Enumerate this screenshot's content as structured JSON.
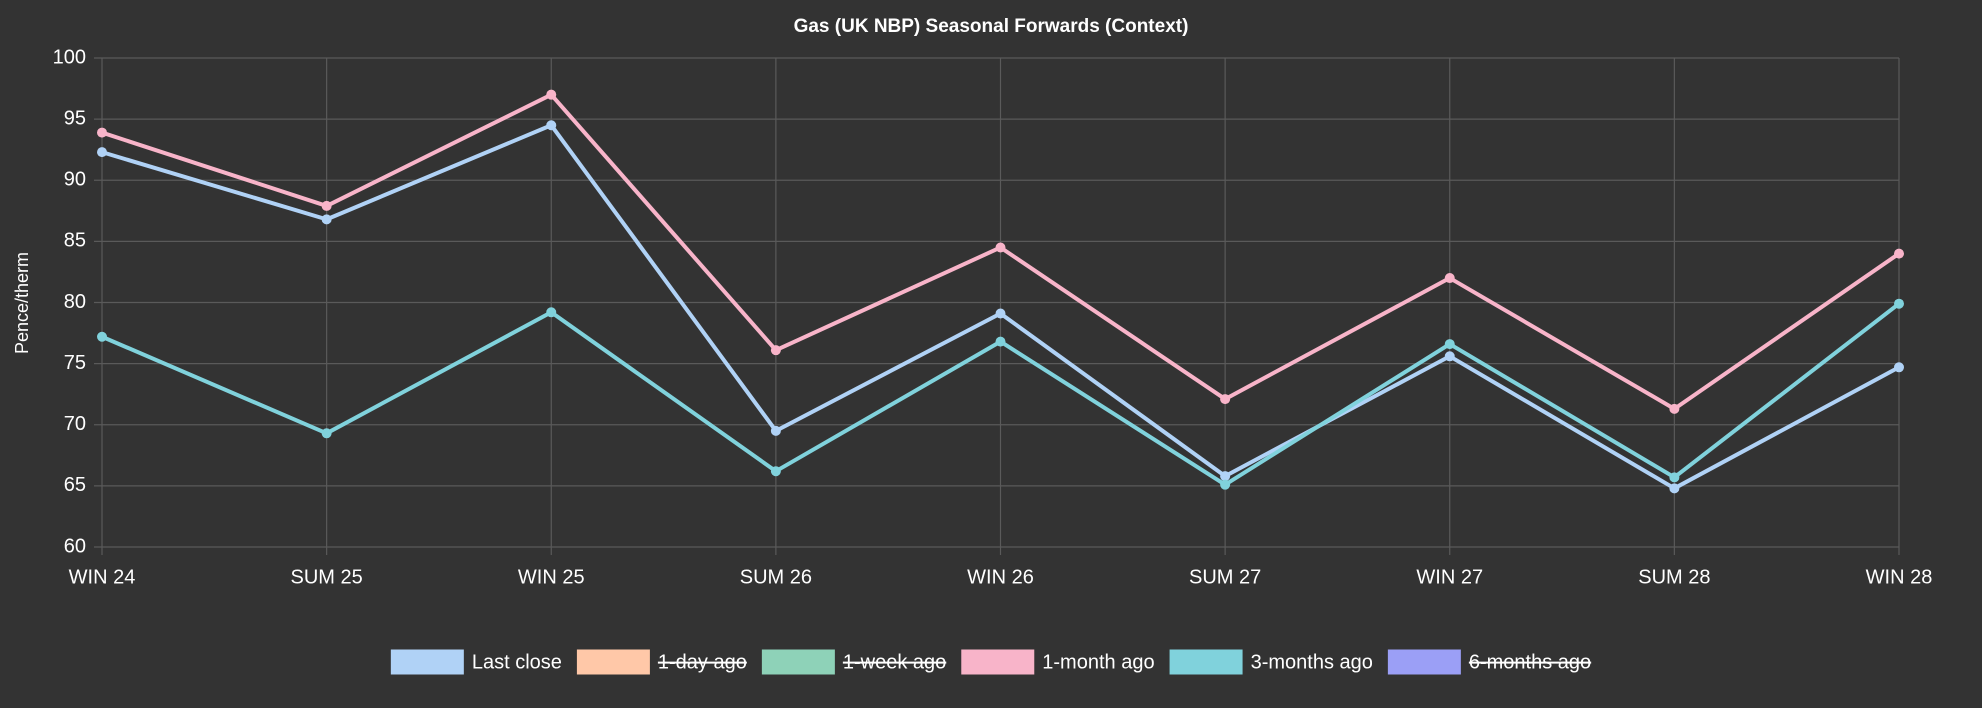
{
  "chart_data": {
    "type": "line",
    "title": "Gas (UK NBP) Seasonal Forwards (Context)",
    "y_label": "Pence/therm",
    "categories": [
      "WIN 24",
      "SUM 25",
      "WIN 25",
      "SUM 26",
      "WIN 26",
      "SUM 27",
      "WIN 27",
      "SUM 28",
      "WIN 28"
    ],
    "series": [
      {
        "name": "Last close",
        "color": "#b0d2f6",
        "hidden": false,
        "values": [
          92.3,
          86.8,
          94.5,
          69.5,
          79.1,
          65.8,
          75.6,
          64.8,
          74.7
        ]
      },
      {
        "name": "1-day ago",
        "color": "#ffc8a8",
        "hidden": true,
        "values": [
          null,
          null,
          null,
          null,
          null,
          null,
          null,
          null,
          null
        ]
      },
      {
        "name": "1-week ago",
        "color": "#8ed2b8",
        "hidden": true,
        "values": [
          null,
          null,
          null,
          null,
          null,
          null,
          null,
          null,
          null
        ]
      },
      {
        "name": "1-month ago",
        "color": "#f8b4c9",
        "hidden": false,
        "values": [
          93.9,
          87.9,
          97.0,
          76.1,
          84.5,
          72.1,
          82.0,
          71.3,
          84.0
        ]
      },
      {
        "name": "3-months ago",
        "color": "#80d2dc",
        "hidden": false,
        "values": [
          77.2,
          69.3,
          79.2,
          66.2,
          76.8,
          65.1,
          76.6,
          65.7,
          79.9
        ]
      },
      {
        "name": "6-months ago",
        "color": "#9b9ff6",
        "hidden": true,
        "values": [
          null,
          null,
          null,
          null,
          null,
          null,
          null,
          null,
          null
        ]
      }
    ],
    "ylim": [
      60,
      100
    ],
    "yticks": [
      60,
      65,
      70,
      75,
      80,
      85,
      90,
      95,
      100
    ],
    "grid": true,
    "legend": "bottom"
  }
}
